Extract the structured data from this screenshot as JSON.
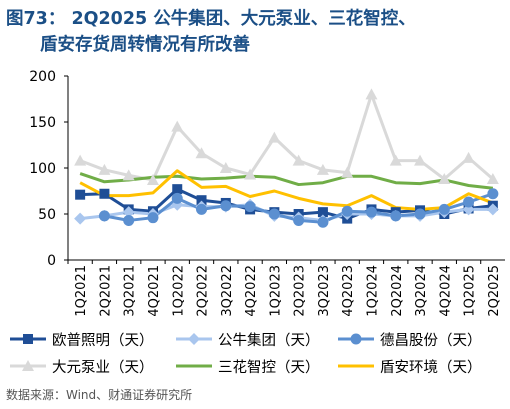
{
  "title": {
    "prefix": "图73：",
    "line1": "2Q2025 公牛集团、大元泵业、三花智控、",
    "line2": "盾安存货周转情况有所改善"
  },
  "source": "数据来源：Wind、财通证券研究所",
  "colors": {
    "title": "#1b4f86",
    "axis": "#000000",
    "grid": "#e6e6e6"
  },
  "chart_data": {
    "type": "line",
    "categories": [
      "1Q2021",
      "2Q2021",
      "3Q2021",
      "4Q2021",
      "1Q2022",
      "2Q2022",
      "3Q2022",
      "4Q2022",
      "1Q2023",
      "2Q2023",
      "3Q2023",
      "4Q2023",
      "1Q2024",
      "2Q2024",
      "3Q2024",
      "4Q2024",
      "1Q2025",
      "2Q2025"
    ],
    "ylim": [
      0,
      200
    ],
    "yticks": [
      0,
      50,
      100,
      150,
      200
    ],
    "grid": false,
    "legend_position": "bottom",
    "series": [
      {
        "name": "欧普照明（天）",
        "color": "#1f4e96",
        "marker": "square",
        "values": [
          71,
          72,
          55,
          53,
          77,
          65,
          62,
          55,
          52,
          50,
          52,
          45,
          55,
          52,
          54,
          50,
          56,
          59
        ]
      },
      {
        "name": "公牛集团（天）",
        "color": "#a9c6ee",
        "marker": "diamond",
        "values": [
          45,
          48,
          52,
          50,
          60,
          58,
          58,
          60,
          48,
          46,
          43,
          50,
          50,
          48,
          48,
          52,
          55,
          55
        ]
      },
      {
        "name": "德昌股份（天）",
        "color": "#5b8fd0",
        "marker": "circle",
        "values": [
          null,
          48,
          43,
          46,
          67,
          55,
          59,
          58,
          50,
          43,
          41,
          53,
          52,
          48,
          50,
          55,
          63,
          72
        ]
      },
      {
        "name": "大元泵业（天）",
        "color": "#d9d9d9",
        "marker": "triangle",
        "values": [
          108,
          98,
          92,
          87,
          145,
          116,
          100,
          93,
          133,
          108,
          98,
          95,
          180,
          108,
          108,
          88,
          111,
          88
        ]
      },
      {
        "name": "三花智控（天）",
        "color": "#70ad47",
        "marker": "none",
        "values": [
          94,
          85,
          87,
          90,
          91,
          88,
          89,
          91,
          90,
          82,
          84,
          91,
          91,
          84,
          83,
          87,
          81,
          78
        ]
      },
      {
        "name": "盾安环境（天）",
        "color": "#ffc000",
        "marker": "none",
        "values": [
          84,
          70,
          70,
          73,
          97,
          79,
          80,
          69,
          75,
          67,
          61,
          59,
          70,
          57,
          55,
          57,
          72,
          62
        ]
      }
    ]
  }
}
